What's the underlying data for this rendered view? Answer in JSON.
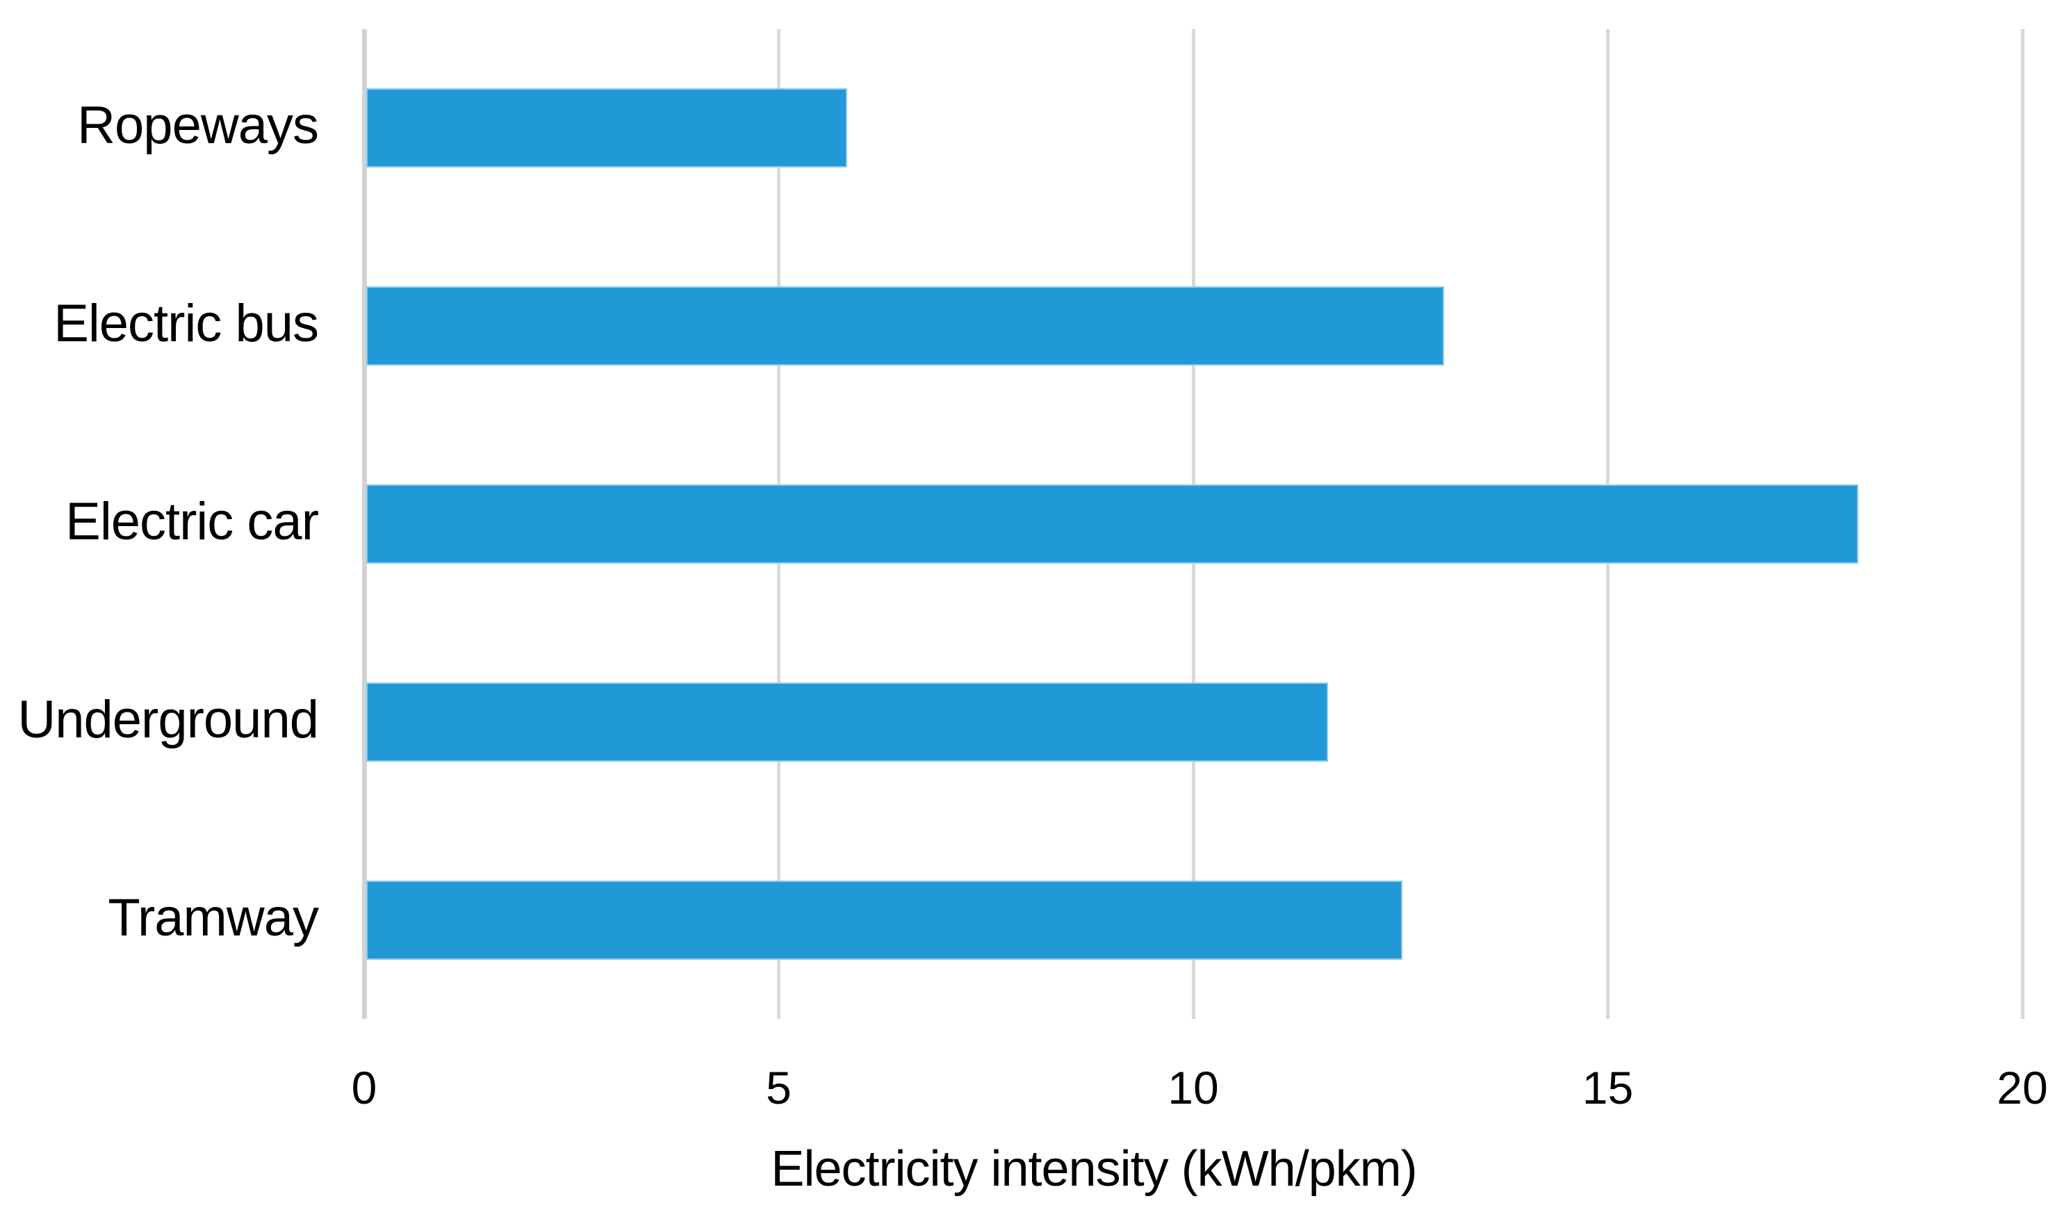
{
  "chart_data": {
    "type": "bar",
    "orientation": "horizontal",
    "title": "",
    "categories": [
      "Ropeways",
      "Electric bus",
      "Electric car",
      "Underground",
      "Tramway"
    ],
    "values": [
      5.8,
      13,
      18,
      11.6,
      12.5
    ],
    "xlabel": "Electricity intensity (kWh/pkm)",
    "ylabel": "",
    "xlim": [
      0,
      20
    ],
    "xticks": [
      0,
      5,
      10,
      15,
      20
    ],
    "grid": true,
    "legend_position": "none",
    "colors": {
      "bar_fill": "#2199D6",
      "bar_border": "#8ECAEC",
      "gridline": "#D9D9D9",
      "axis_line": "#D2D2D2",
      "text": "#000000",
      "background": "#FFFFFF"
    }
  }
}
